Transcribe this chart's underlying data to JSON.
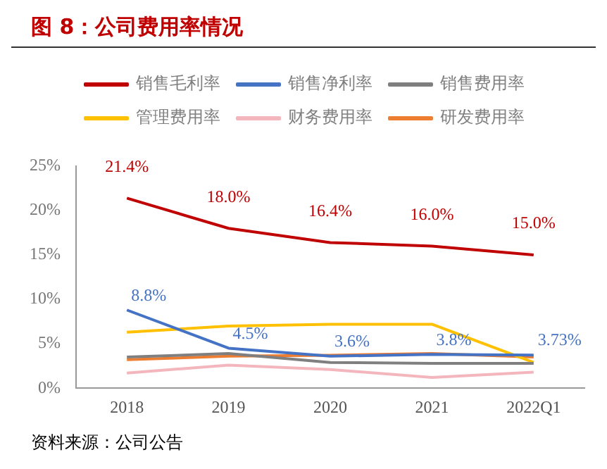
{
  "chart_data": {
    "type": "line",
    "title": "图 8：公司费用率情况",
    "annotations": [
      "资料来源：公司公告"
    ],
    "categories": [
      "2018",
      "2019",
      "2020",
      "2021",
      "2022Q1"
    ],
    "series": [
      {
        "name": "销售毛利率",
        "color": "#c00000",
        "values": [
          21.4,
          18.0,
          16.4,
          16.0,
          15.0
        ],
        "value_labels": [
          "21.4%",
          "18.0%",
          "16.4%",
          "16.0%",
          "15.0%"
        ]
      },
      {
        "name": "销售净利率",
        "color": "#4472c4",
        "values": [
          8.8,
          4.5,
          3.6,
          3.8,
          3.73
        ],
        "value_labels": [
          "8.8%",
          "4.5%",
          "3.6%",
          "3.8%",
          "3.73%"
        ]
      },
      {
        "name": "销售费用率",
        "color": "#7f7f7f",
        "values": [
          3.5,
          3.9,
          2.9,
          2.8,
          2.8
        ]
      },
      {
        "name": "管理费用率",
        "color": "#ffc000",
        "values": [
          6.3,
          7.0,
          7.2,
          7.2,
          2.9
        ]
      },
      {
        "name": "财务费用率",
        "color": "#f4b6bd",
        "values": [
          1.7,
          2.6,
          2.1,
          1.2,
          1.8
        ]
      },
      {
        "name": "研发费用率",
        "color": "#ed7d31",
        "values": [
          3.2,
          3.6,
          3.7,
          3.9,
          3.5
        ]
      }
    ],
    "ylim": [
      0,
      25
    ],
    "yticks": [
      {
        "value": 0,
        "label": "0%"
      },
      {
        "value": 5,
        "label": "5%"
      },
      {
        "value": 10,
        "label": "10%"
      },
      {
        "value": 15,
        "label": "15%"
      },
      {
        "value": 20,
        "label": "20%"
      },
      {
        "value": 25,
        "label": "25%"
      }
    ],
    "grid": false,
    "legend": "top",
    "marker": "none",
    "line_style": "solid"
  }
}
